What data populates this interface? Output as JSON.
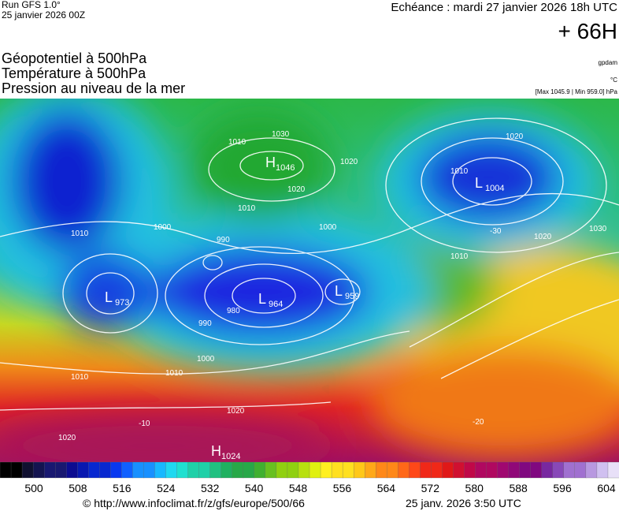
{
  "header": {
    "run": "Run GFS 1.0°",
    "date": "25 janvier 2026 00Z",
    "echeance": "Echéance : mardi 27 janvier 2026 18h UTC",
    "lead": "+ 66H",
    "titles": [
      "Géopotentiel à 500hPa",
      "Température à 500hPa",
      "Pression au niveau de la mer"
    ],
    "units": [
      "gpdam",
      "°C"
    ],
    "extremes": "[Max 1045.9 | Min 959.0] hPa"
  },
  "centers": [
    {
      "letter": "H",
      "value": "1046"
    },
    {
      "letter": "L",
      "value": "1004"
    },
    {
      "letter": "L",
      "value": "973"
    },
    {
      "letter": "L",
      "value": "964"
    },
    {
      "letter": "L",
      "value": "959"
    },
    {
      "letter": "H",
      "value": "1024"
    }
  ],
  "isobar_labels": [
    "1010",
    "1000",
    "990",
    "980",
    "990",
    "1000",
    "1010",
    "1010",
    "1020",
    "1020",
    "1030",
    "1010",
    "1020",
    "1020",
    "1010",
    "1000",
    "1010",
    "1020",
    "1020",
    "1030",
    "1010",
    "-30",
    "-20",
    "-10"
  ],
  "colorbar": {
    "ticks": [
      500,
      508,
      516,
      524,
      532,
      540,
      548,
      556,
      564,
      572,
      580,
      588,
      596,
      604
    ]
  },
  "footer": {
    "url": "© http://www.infoclimat.fr/z/gfs/europe/500/66",
    "timestamp": "25 janv. 2026  3:50 UTC"
  }
}
